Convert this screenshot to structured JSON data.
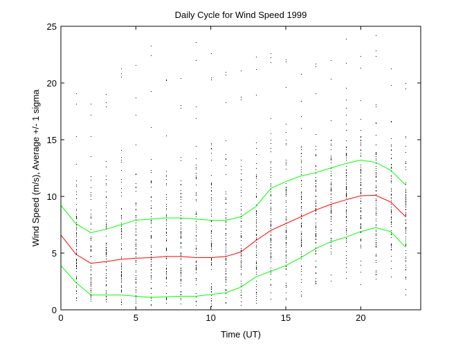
{
  "chart_data": {
    "type": "line",
    "title": "Daily Cycle for Wind Speed 1999",
    "xlabel": "Time (UT)",
    "ylabel": "Wind Speed (m/s), Average +/- 1 sigma",
    "xlim": [
      0,
      24
    ],
    "ylim": [
      0,
      25
    ],
    "xticks": [
      0,
      5,
      10,
      15,
      20
    ],
    "yticks": [
      0,
      5,
      10,
      15,
      20,
      25
    ],
    "grid": false,
    "x": [
      0,
      1,
      2,
      3,
      4,
      5,
      6,
      7,
      8,
      9,
      10,
      11,
      12,
      13,
      14,
      15,
      16,
      17,
      18,
      19,
      20,
      21,
      22,
      23
    ],
    "series": [
      {
        "color": "#00ff00",
        "values": [
          9.2,
          7.6,
          6.8,
          7.1,
          7.5,
          7.9,
          8.0,
          8.1,
          8.1,
          8.0,
          7.9,
          7.9,
          8.2,
          9.1,
          10.7,
          11.3,
          11.8,
          12.1,
          12.5,
          12.9,
          13.2,
          13.0,
          12.3,
          11.0
        ]
      },
      {
        "color": "#ff0000",
        "values": [
          6.6,
          4.9,
          4.1,
          4.25,
          4.45,
          4.55,
          4.6,
          4.7,
          4.7,
          4.6,
          4.6,
          4.7,
          5.1,
          6.1,
          7.0,
          7.6,
          8.2,
          8.8,
          9.3,
          9.7,
          10.05,
          10.1,
          9.5,
          8.2
        ]
      },
      {
        "color": "#00ff00",
        "values": [
          3.9,
          2.4,
          1.3,
          1.3,
          1.3,
          1.2,
          1.1,
          1.15,
          1.2,
          1.2,
          1.35,
          1.5,
          2.0,
          2.9,
          3.4,
          3.9,
          4.6,
          5.4,
          6.0,
          6.4,
          6.9,
          7.25,
          6.9,
          5.5
        ]
      }
    ],
    "scatter": {
      "color": "#000000",
      "hours": [
        1,
        2,
        3,
        4,
        5,
        6,
        7,
        8,
        9,
        10,
        11,
        12,
        13,
        14,
        15,
        16,
        17,
        18,
        19,
        20,
        21,
        22,
        23
      ],
      "min": [
        0.7,
        0.3,
        0.4,
        0.5,
        0.3,
        0.4,
        0.6,
        0.5,
        0.4,
        0.3,
        0.5,
        0.4,
        0.5,
        0.6,
        0.8,
        1.1,
        2.0,
        2.5,
        2.6,
        2.0,
        2.5,
        1.8,
        1.0
      ],
      "max": [
        19.1,
        18.2,
        19.0,
        21.3,
        21.6,
        23.3,
        20.3,
        20.4,
        23.6,
        22.6,
        21.0,
        21.1,
        22.3,
        22.6,
        22.1,
        20.8,
        21.7,
        22.0,
        23.9,
        22.4,
        24.2,
        21.3,
        20.0
      ]
    }
  }
}
